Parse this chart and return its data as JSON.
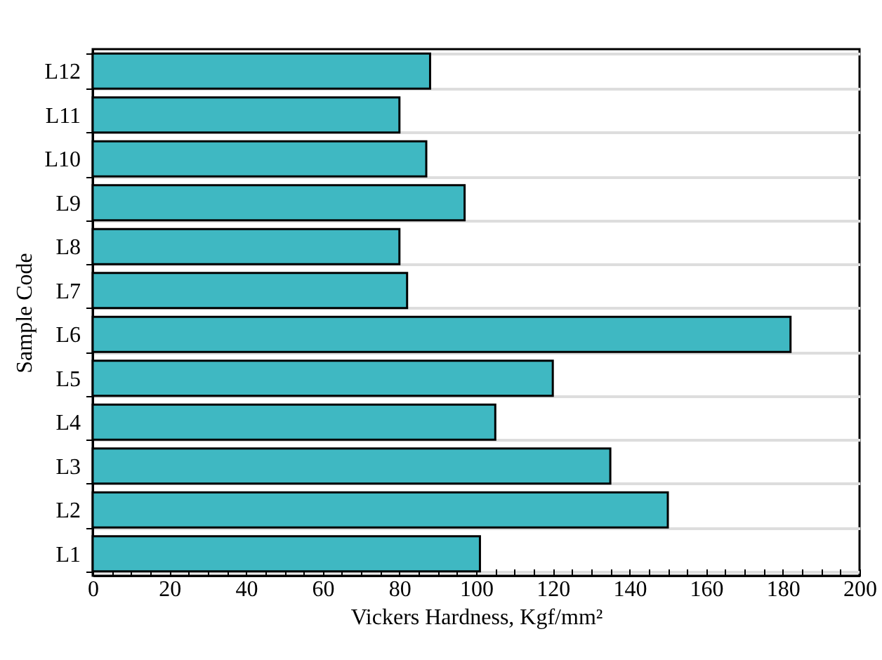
{
  "chart_data": {
    "type": "bar",
    "orientation": "horizontal",
    "xlabel": "Vickers Hardness, Kgf/mm²",
    "ylabel": "Sample Code",
    "categories": [
      "L12",
      "L11",
      "L10",
      "L9",
      "L8",
      "L7",
      "L6",
      "L5",
      "L4",
      "L3",
      "L2",
      "L1"
    ],
    "values": [
      88,
      80,
      87,
      97,
      80,
      82,
      182,
      120,
      105,
      135,
      150,
      101
    ],
    "color": "#3fb8c2",
    "xlim": [
      0,
      200
    ],
    "xticks": [
      0,
      {
        "value": 5,
        "label": null
      },
      {
        "value": 10,
        "label": null
      },
      {
        "value": 15,
        "label": null
      },
      20,
      {
        "value": 25,
        "label": null
      },
      {
        "value": 30,
        "label": null
      },
      {
        "value": 35,
        "label": null
      },
      40,
      {
        "value": 45,
        "label": null
      },
      {
        "value": 50,
        "label": null
      },
      {
        "value": 55,
        "label": null
      },
      60,
      {
        "value": 65,
        "label": null
      },
      {
        "value": 70,
        "label": null
      },
      {
        "value": 75,
        "label": null
      },
      80,
      {
        "value": 85,
        "label": null
      },
      {
        "value": 90,
        "label": null
      },
      {
        "value": 95,
        "label": null
      },
      100,
      {
        "value": 105,
        "label": null
      },
      {
        "value": 110,
        "label": null
      },
      {
        "value": 115,
        "label": null
      },
      120,
      {
        "value": 125,
        "label": null
      },
      {
        "value": 130,
        "label": null
      },
      {
        "value": 135,
        "label": null
      },
      140,
      {
        "value": 145,
        "label": null
      },
      {
        "value": 150,
        "label": null
      },
      {
        "value": 155,
        "label": null
      },
      160,
      {
        "value": 165,
        "label": null
      },
      {
        "value": 170,
        "label": null
      },
      {
        "value": 175,
        "label": null
      },
      180,
      {
        "value": 185,
        "label": null
      },
      {
        "value": 190,
        "label": null
      },
      {
        "value": 195,
        "label": null
      },
      200
    ],
    "grid": "y"
  }
}
